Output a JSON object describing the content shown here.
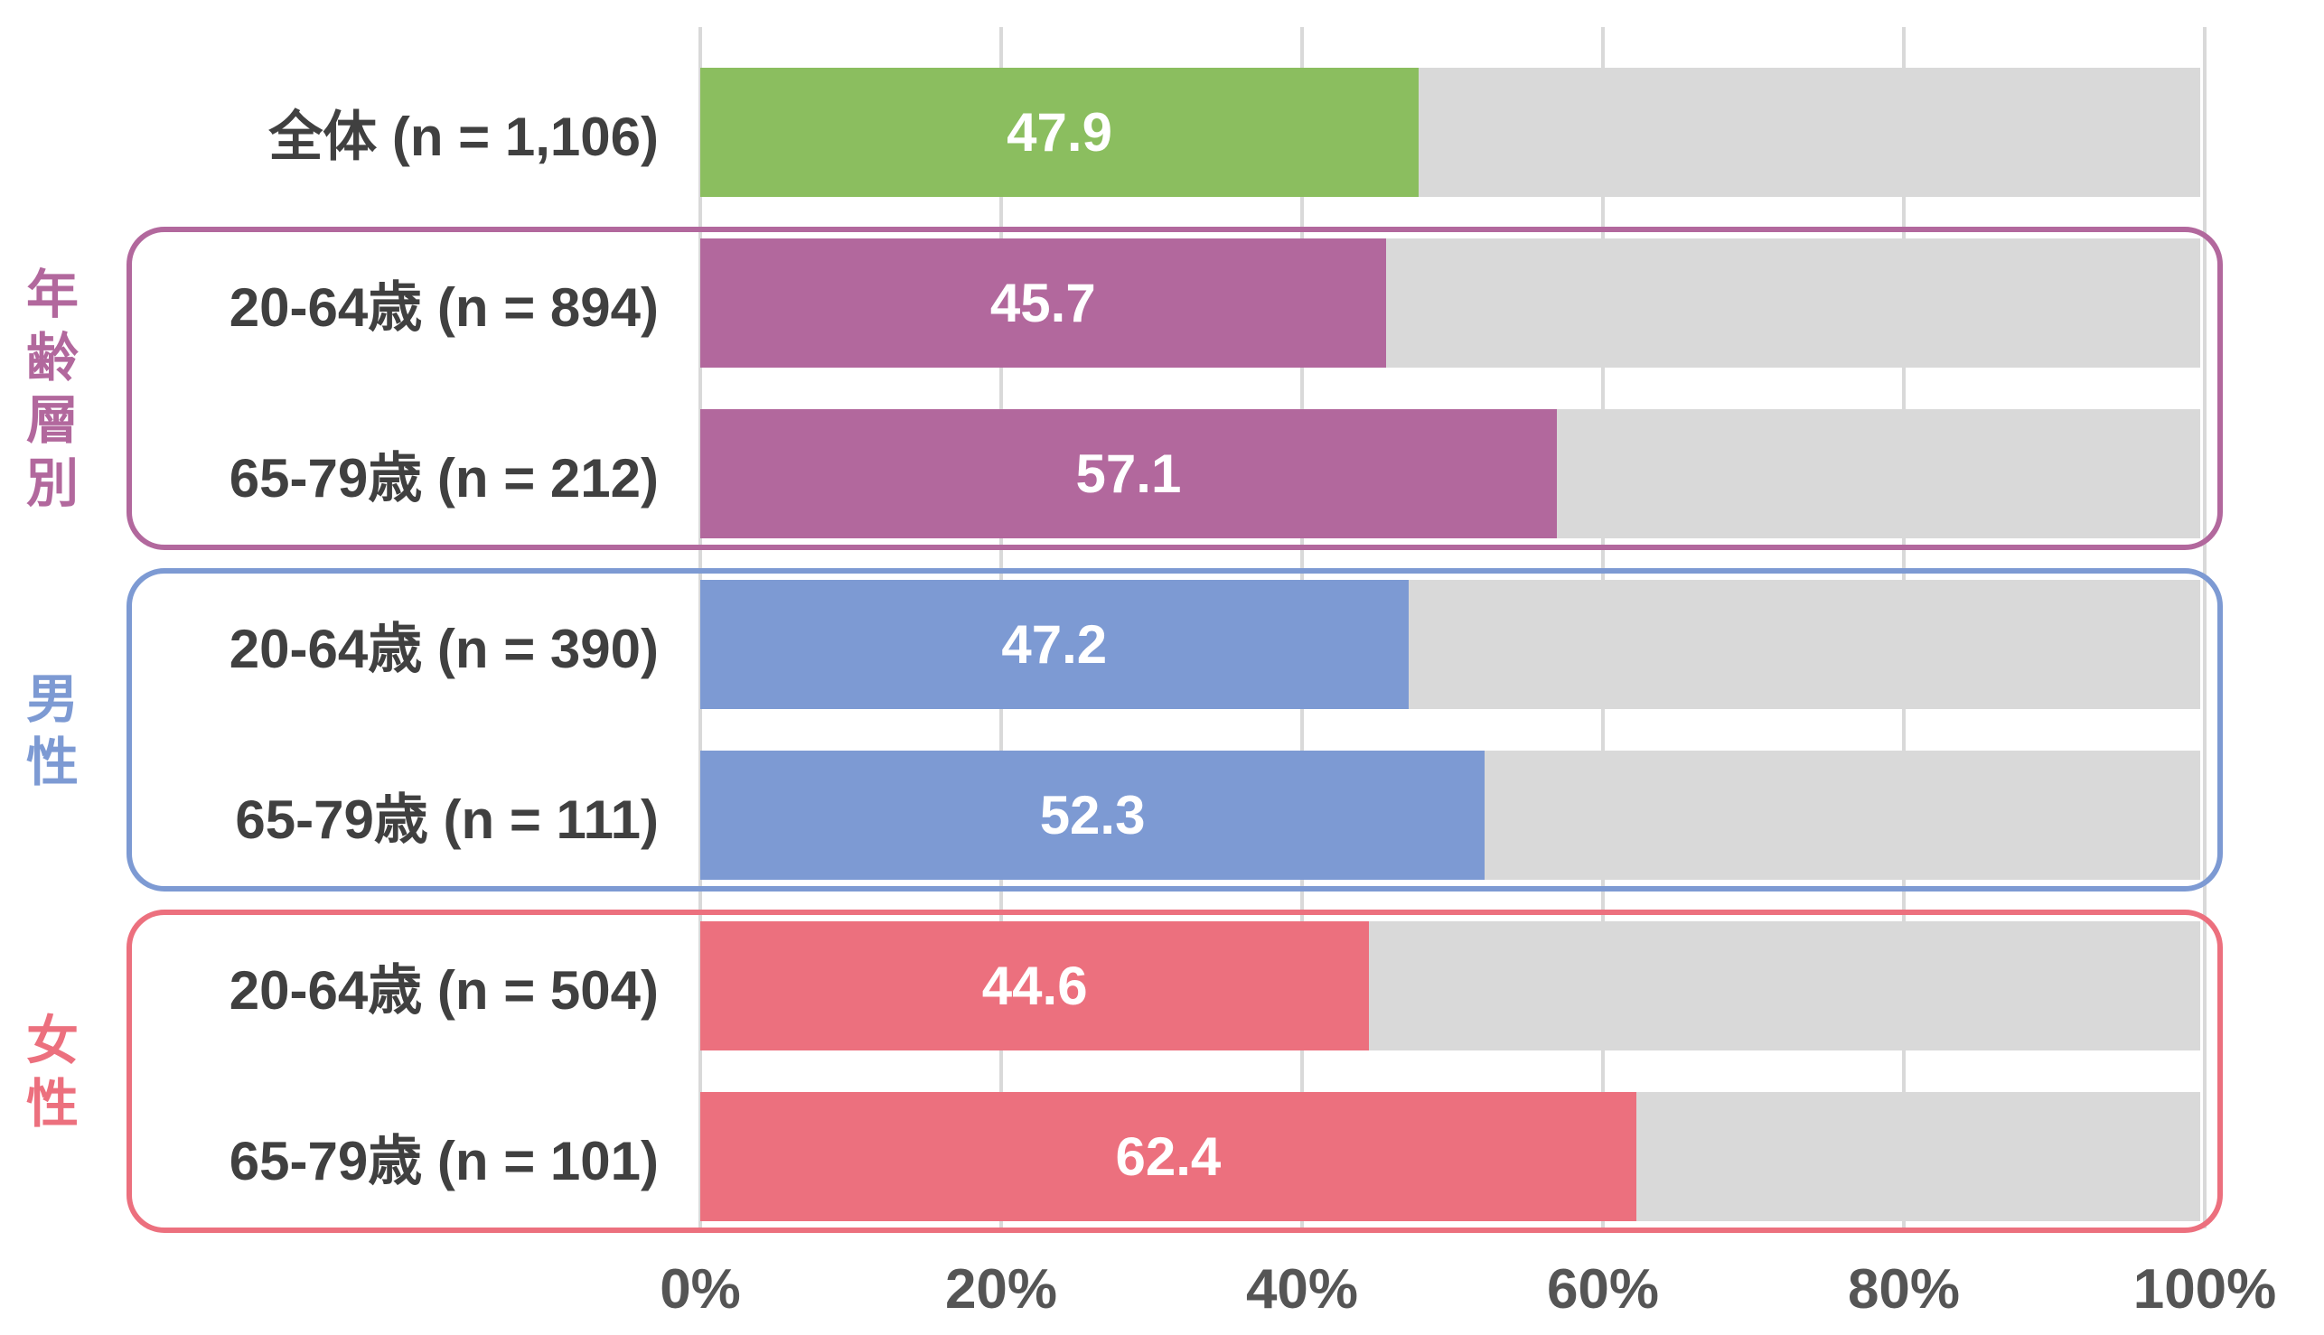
{
  "chart_data": {
    "type": "bar",
    "orientation": "horizontal",
    "title": "",
    "xlabel": "",
    "ylabel": "",
    "unit": "%",
    "xlim": [
      0,
      100
    ],
    "grid": "vertical",
    "x_ticks": [
      "0%",
      "20%",
      "40%",
      "60%",
      "80%",
      "100%"
    ],
    "rows": [
      {
        "label": "全体 (n = 1,106)",
        "value": 47.9,
        "color": "green",
        "group": null
      },
      {
        "label": "20-64歳 (n = 894)",
        "value": 45.7,
        "color": "purple",
        "group": "年齢層別"
      },
      {
        "label": "65-79歳 (n = 212)",
        "value": 57.1,
        "color": "purple",
        "group": "年齢層別"
      },
      {
        "label": "20-64歳 (n = 390)",
        "value": 47.2,
        "color": "blue",
        "group": "男性"
      },
      {
        "label": "65-79歳 (n = 111)",
        "value": 52.3,
        "color": "blue",
        "group": "男性"
      },
      {
        "label": "20-64歳 (n = 504)",
        "value": 44.6,
        "color": "red",
        "group": "女性"
      },
      {
        "label": "65-79歳 (n = 101)",
        "value": 62.4,
        "color": "red",
        "group": "女性"
      }
    ],
    "groups": [
      {
        "label": "年齢層別",
        "color": "purple",
        "row_indices": [
          1,
          2
        ]
      },
      {
        "label": "男性",
        "color": "blue",
        "row_indices": [
          3,
          4
        ]
      },
      {
        "label": "女性",
        "color": "red",
        "row_indices": [
          5,
          6
        ]
      }
    ],
    "colors": {
      "green": "#8BBE5F",
      "purple": "#B2689D",
      "blue": "#7D9AD3",
      "red": "#EC707E",
      "track": "#D9D9D9",
      "gridline": "#D9D9D9",
      "row_label_text": "#404040",
      "axis_text": "#555555",
      "value_text": "#FFFFFF"
    }
  }
}
